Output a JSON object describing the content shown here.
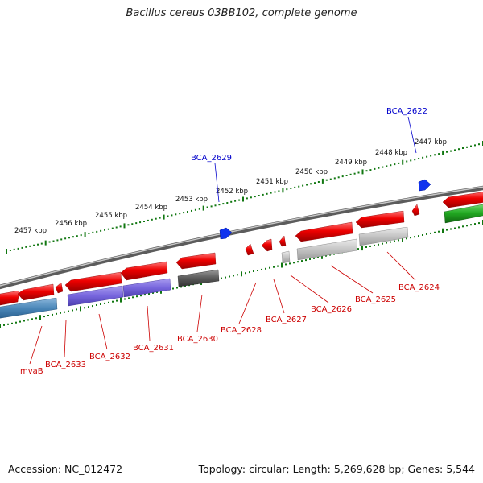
{
  "title": "Bacillus cereus 03BB102, complete genome",
  "footer": {
    "accession": "Accession: NC_012472",
    "summary": "Topology: circular; Length: 5,269,628 bp; Genes: 5,544"
  },
  "colors": {
    "forward_gene": "#ee0000",
    "reverse_blue": "#7766dd",
    "reverse_steel": "#4a86b8",
    "reverse_gray": "#c4c4c4",
    "reverse_dark": "#5a5a5a",
    "green_feature": "#22aa22",
    "marker": "#1133ee",
    "backbone": "#808080",
    "tick": "#117711",
    "gene_label": "#cc0000",
    "marker_label": "#0000cc"
  },
  "kbp_labels": [
    "2457 kbp",
    "2456 kbp",
    "2455 kbp",
    "2454 kbp",
    "2453 kbp",
    "2452 kbp",
    "2451 kbp",
    "2450 kbp",
    "2449 kbp",
    "2448 kbp",
    "2447 kbp"
  ],
  "markers": [
    {
      "label": "BCA_2629",
      "kbp": 2452.3
    },
    {
      "label": "BCA_2622",
      "kbp": 2447.2
    }
  ],
  "gene_labels": [
    "mvaB",
    "BCA_2633",
    "BCA_2632",
    "BCA_2631",
    "BCA_2630",
    "BCA_2628",
    "BCA_2627",
    "BCA_2626",
    "BCA_2625",
    "BCA_2624"
  ]
}
